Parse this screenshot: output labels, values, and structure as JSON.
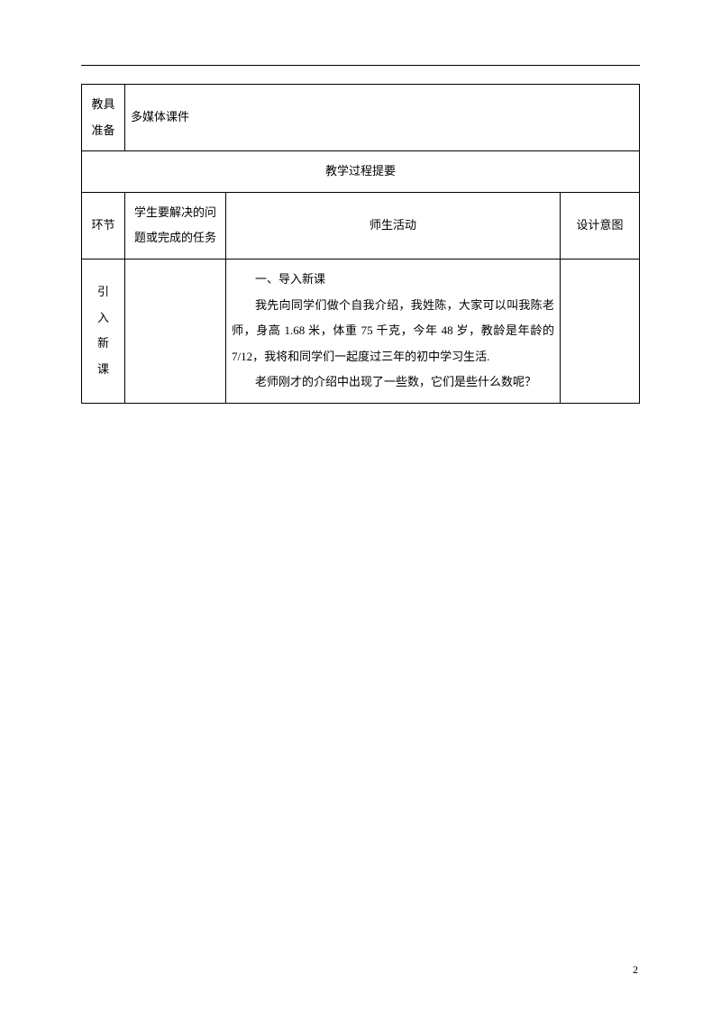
{
  "table": {
    "row1": {
      "label_line1": "教具",
      "label_line2": "准备",
      "value": "多媒体课件"
    },
    "section_header": "教学过程提要",
    "header_row": {
      "col1": "环节",
      "col2_line1": "学生要解决的问",
      "col2_line2": "题或完成的任务",
      "col3": "师生活动",
      "col4": "设计意图"
    },
    "body_row": {
      "col1_c1": "引",
      "col1_c2": "入",
      "col1_c3": "新",
      "col1_c4": "课",
      "col2": "",
      "col3": {
        "p1": "一、导入新课",
        "p2": "我先向同学们做个自我介绍，我姓陈，大家可以叫我陈老师，身高 1.68 米，体重 75 千克，今年 48 岁，教龄是年龄的 7/12，我将和同学们一起度过三年的初中学习生活.",
        "p3": "老师刚才的介绍中出现了一些数，它们是些什么数呢？"
      },
      "col4": ""
    }
  },
  "page_number": "2"
}
